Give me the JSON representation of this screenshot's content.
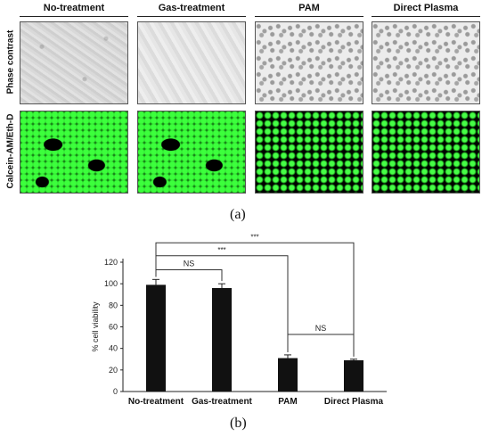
{
  "panel_a": {
    "columns": [
      "No-treatment",
      "Gas-treatment",
      "PAM",
      "Direct Plasma"
    ],
    "rows": [
      "Phase contrast",
      "Calcein-AM/Eth-D"
    ],
    "label": "(a)"
  },
  "panel_b": {
    "label": "(b)",
    "chart_data": {
      "type": "bar",
      "categories": [
        "No-treatment",
        "Gas-treatment",
        "PAM",
        "Direct Plasma"
      ],
      "values": [
        99,
        96,
        31,
        29
      ],
      "errors": [
        5,
        4,
        3,
        1
      ],
      "ylabel": "% cell viability",
      "xlabel": "",
      "ylim": [
        0,
        120
      ],
      "yticks": [
        0,
        20,
        40,
        60,
        80,
        100,
        120
      ],
      "bar_color": "#111111",
      "significance": [
        {
          "from": "No-treatment",
          "to": "Gas-treatment",
          "label": "NS"
        },
        {
          "from": "No-treatment",
          "to": "PAM",
          "label": "***"
        },
        {
          "from": "No-treatment",
          "to": "Direct Plasma",
          "label": "***"
        },
        {
          "from": "PAM",
          "to": "Direct Plasma",
          "label": "NS"
        }
      ]
    }
  }
}
